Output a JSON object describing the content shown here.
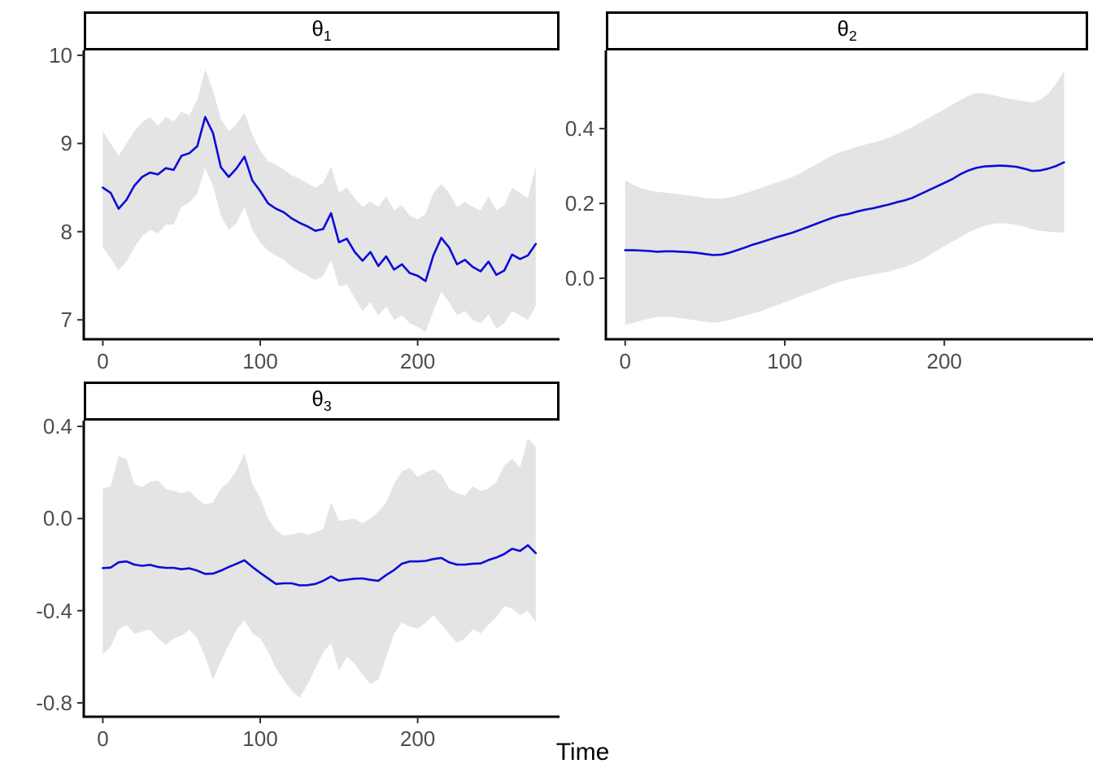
{
  "figure": {
    "x_label": "Time",
    "line_color": "#0b0bd8",
    "band_color": "#e4e4e4",
    "axis_color": "#000000",
    "tick_label_color": "#4d4d4d"
  },
  "chart_data": [
    {
      "type": "line",
      "id": "theta1",
      "title": {
        "base": "θ",
        "sub": "1"
      },
      "xlim": [
        -12.1,
        290.1
      ],
      "ylim": [
        6.78,
        10.055
      ],
      "x_ticks": [
        {
          "value": 0,
          "label": "0"
        },
        {
          "value": 100,
          "label": "100"
        },
        {
          "value": 200,
          "label": "200"
        }
      ],
      "y_ticks": [
        {
          "value": 10,
          "label": "10"
        },
        {
          "value": 9,
          "label": "9"
        },
        {
          "value": 8,
          "label": "8"
        },
        {
          "value": 7,
          "label": "7"
        }
      ],
      "x": [
        0,
        5,
        10,
        15,
        20,
        25,
        30,
        35,
        40,
        45,
        50,
        55,
        60,
        65,
        70,
        75,
        80,
        85,
        90,
        95,
        100,
        105,
        110,
        115,
        120,
        125,
        130,
        135,
        140,
        145,
        150,
        155,
        160,
        165,
        170,
        175,
        180,
        185,
        190,
        195,
        200,
        205,
        210,
        215,
        220,
        225,
        230,
        235,
        240,
        245,
        250,
        255,
        260,
        265,
        270,
        275
      ],
      "series": [
        {
          "name": "posterior_mean",
          "values": [
            8.5,
            8.44,
            8.26,
            8.36,
            8.52,
            8.62,
            8.67,
            8.65,
            8.72,
            8.7,
            8.86,
            8.89,
            8.97,
            9.3,
            9.12,
            8.73,
            8.62,
            8.72,
            8.85,
            8.58,
            8.46,
            8.32,
            8.26,
            8.22,
            8.15,
            8.1,
            8.06,
            8.01,
            8.03,
            8.21,
            7.88,
            7.92,
            7.77,
            7.67,
            7.77,
            7.61,
            7.72,
            7.57,
            7.63,
            7.53,
            7.5,
            7.44,
            7.73,
            7.93,
            7.82,
            7.63,
            7.68,
            7.6,
            7.55,
            7.66,
            7.51,
            7.56,
            7.74,
            7.69,
            7.73,
            7.86
          ]
        },
        {
          "name": "band_lower",
          "values": [
            7.82,
            7.7,
            7.56,
            7.66,
            7.82,
            7.95,
            8.02,
            7.98,
            8.08,
            8.08,
            8.28,
            8.33,
            8.43,
            8.72,
            8.52,
            8.18,
            8.02,
            8.1,
            8.28,
            8.02,
            7.88,
            7.78,
            7.73,
            7.68,
            7.6,
            7.55,
            7.5,
            7.45,
            7.5,
            7.68,
            7.38,
            7.4,
            7.25,
            7.1,
            7.2,
            7.05,
            7.15,
            7.0,
            7.05,
            6.96,
            6.92,
            6.86,
            7.1,
            7.32,
            7.2,
            7.05,
            7.1,
            7.0,
            6.96,
            7.06,
            6.9,
            6.96,
            7.1,
            7.05,
            7.0,
            7.16
          ]
        },
        {
          "name": "band_upper",
          "values": [
            9.14,
            9.0,
            8.86,
            9.0,
            9.14,
            9.24,
            9.3,
            9.2,
            9.3,
            9.25,
            9.36,
            9.32,
            9.5,
            9.84,
            9.6,
            9.28,
            9.14,
            9.22,
            9.35,
            9.1,
            8.92,
            8.8,
            8.76,
            8.7,
            8.64,
            8.6,
            8.55,
            8.5,
            8.55,
            8.74,
            8.44,
            8.5,
            8.38,
            8.28,
            8.34,
            8.28,
            8.4,
            8.24,
            8.3,
            8.18,
            8.14,
            8.2,
            8.44,
            8.54,
            8.44,
            8.28,
            8.34,
            8.28,
            8.24,
            8.4,
            8.24,
            8.3,
            8.5,
            8.44,
            8.38,
            8.74
          ]
        }
      ]
    },
    {
      "type": "line",
      "id": "theta2",
      "title": {
        "base": "θ",
        "sub": "2"
      },
      "xlim": [
        -12.1,
        290.1
      ],
      "ylim": [
        -0.163,
        0.609
      ],
      "x_ticks": [
        {
          "value": 0,
          "label": "0"
        },
        {
          "value": 100,
          "label": "100"
        },
        {
          "value": 200,
          "label": "200"
        }
      ],
      "y_ticks": [
        {
          "value": 0.4,
          "label": "0.4"
        },
        {
          "value": 0.2,
          "label": "0.2"
        },
        {
          "value": 0.0,
          "label": "0.0"
        }
      ],
      "x": [
        0,
        5,
        10,
        15,
        20,
        25,
        30,
        35,
        40,
        45,
        50,
        55,
        60,
        65,
        70,
        75,
        80,
        85,
        90,
        95,
        100,
        105,
        110,
        115,
        120,
        125,
        130,
        135,
        140,
        145,
        150,
        155,
        160,
        165,
        170,
        175,
        180,
        185,
        190,
        195,
        200,
        205,
        210,
        215,
        220,
        225,
        230,
        235,
        240,
        245,
        250,
        255,
        260,
        265,
        270,
        275
      ],
      "series": [
        {
          "name": "posterior_mean",
          "values": [
            0.075,
            0.075,
            0.074,
            0.073,
            0.071,
            0.072,
            0.072,
            0.071,
            0.07,
            0.068,
            0.065,
            0.062,
            0.063,
            0.068,
            0.075,
            0.082,
            0.09,
            0.096,
            0.103,
            0.11,
            0.116,
            0.122,
            0.13,
            0.138,
            0.146,
            0.154,
            0.162,
            0.168,
            0.172,
            0.178,
            0.183,
            0.187,
            0.192,
            0.197,
            0.203,
            0.208,
            0.215,
            0.225,
            0.235,
            0.245,
            0.255,
            0.265,
            0.278,
            0.288,
            0.295,
            0.299,
            0.3,
            0.301,
            0.3,
            0.298,
            0.293,
            0.287,
            0.288,
            0.293,
            0.3,
            0.31
          ]
        },
        {
          "name": "band_lower",
          "values": [
            -0.125,
            -0.12,
            -0.113,
            -0.108,
            -0.104,
            -0.103,
            -0.104,
            -0.107,
            -0.11,
            -0.113,
            -0.116,
            -0.119,
            -0.117,
            -0.112,
            -0.106,
            -0.1,
            -0.094,
            -0.088,
            -0.08,
            -0.072,
            -0.064,
            -0.056,
            -0.048,
            -0.04,
            -0.032,
            -0.024,
            -0.016,
            -0.009,
            -0.003,
            0.002,
            0.006,
            0.01,
            0.014,
            0.018,
            0.024,
            0.03,
            0.038,
            0.048,
            0.06,
            0.073,
            0.086,
            0.098,
            0.11,
            0.122,
            0.132,
            0.14,
            0.145,
            0.147,
            0.146,
            0.143,
            0.138,
            0.131,
            0.127,
            0.125,
            0.123,
            0.122
          ]
        },
        {
          "name": "band_upper",
          "values": [
            0.262,
            0.25,
            0.241,
            0.235,
            0.231,
            0.229,
            0.227,
            0.224,
            0.221,
            0.218,
            0.215,
            0.213,
            0.213,
            0.216,
            0.221,
            0.227,
            0.234,
            0.241,
            0.249,
            0.256,
            0.263,
            0.271,
            0.281,
            0.293,
            0.305,
            0.317,
            0.329,
            0.338,
            0.344,
            0.351,
            0.357,
            0.362,
            0.368,
            0.375,
            0.384,
            0.394,
            0.404,
            0.416,
            0.428,
            0.44,
            0.452,
            0.464,
            0.476,
            0.488,
            0.495,
            0.494,
            0.49,
            0.485,
            0.48,
            0.477,
            0.473,
            0.47,
            0.477,
            0.492,
            0.52,
            0.555
          ]
        }
      ]
    },
    {
      "type": "line",
      "id": "theta3",
      "title": {
        "base": "θ",
        "sub": "3"
      },
      "xlim": [
        -12.1,
        290.1
      ],
      "ylim": [
        -0.86,
        0.425
      ],
      "x_ticks": [
        {
          "value": 0,
          "label": "0"
        },
        {
          "value": 100,
          "label": "100"
        },
        {
          "value": 200,
          "label": "200"
        }
      ],
      "y_ticks": [
        {
          "value": 0.4,
          "label": "0.4"
        },
        {
          "value": 0.0,
          "label": "0.0"
        },
        {
          "value": -0.4,
          "label": "-0.4"
        },
        {
          "value": -0.8,
          "label": "-0.8"
        }
      ],
      "x": [
        0,
        5,
        10,
        15,
        20,
        25,
        30,
        35,
        40,
        45,
        50,
        55,
        60,
        65,
        70,
        75,
        80,
        85,
        90,
        95,
        100,
        105,
        110,
        115,
        120,
        125,
        130,
        135,
        140,
        145,
        150,
        155,
        160,
        165,
        170,
        175,
        180,
        185,
        190,
        195,
        200,
        205,
        210,
        215,
        220,
        225,
        230,
        235,
        240,
        245,
        250,
        255,
        260,
        265,
        270,
        275
      ],
      "series": [
        {
          "name": "posterior_mean",
          "values": [
            -0.215,
            -0.213,
            -0.19,
            -0.186,
            -0.2,
            -0.205,
            -0.201,
            -0.21,
            -0.214,
            -0.214,
            -0.22,
            -0.216,
            -0.226,
            -0.24,
            -0.239,
            -0.226,
            -0.21,
            -0.196,
            -0.181,
            -0.21,
            -0.236,
            -0.26,
            -0.284,
            -0.281,
            -0.281,
            -0.29,
            -0.289,
            -0.284,
            -0.27,
            -0.251,
            -0.27,
            -0.265,
            -0.261,
            -0.26,
            -0.266,
            -0.27,
            -0.245,
            -0.224,
            -0.196,
            -0.186,
            -0.186,
            -0.184,
            -0.176,
            -0.171,
            -0.19,
            -0.2,
            -0.2,
            -0.196,
            -0.195,
            -0.18,
            -0.169,
            -0.154,
            -0.131,
            -0.141,
            -0.116,
            -0.15
          ]
        },
        {
          "name": "band_lower",
          "values": [
            -0.59,
            -0.556,
            -0.48,
            -0.462,
            -0.5,
            -0.49,
            -0.482,
            -0.52,
            -0.548,
            -0.52,
            -0.508,
            -0.482,
            -0.52,
            -0.6,
            -0.7,
            -0.618,
            -0.548,
            -0.482,
            -0.44,
            -0.498,
            -0.52,
            -0.578,
            -0.65,
            -0.7,
            -0.748,
            -0.778,
            -0.72,
            -0.65,
            -0.58,
            -0.54,
            -0.66,
            -0.6,
            -0.63,
            -0.678,
            -0.718,
            -0.7,
            -0.6,
            -0.5,
            -0.452,
            -0.468,
            -0.478,
            -0.452,
            -0.42,
            -0.458,
            -0.5,
            -0.54,
            -0.52,
            -0.482,
            -0.498,
            -0.46,
            -0.428,
            -0.38,
            -0.39,
            -0.42,
            -0.4,
            -0.448
          ]
        },
        {
          "name": "band_upper",
          "values": [
            0.13,
            0.14,
            0.27,
            0.258,
            0.15,
            0.136,
            0.16,
            0.164,
            0.13,
            0.12,
            0.11,
            0.12,
            0.086,
            0.06,
            0.07,
            0.13,
            0.16,
            0.21,
            0.284,
            0.15,
            0.09,
            0.0,
            -0.05,
            -0.074,
            -0.07,
            -0.06,
            -0.07,
            -0.06,
            -0.046,
            0.07,
            -0.01,
            -0.006,
            0.0,
            -0.02,
            0.0,
            0.03,
            0.07,
            0.15,
            0.204,
            0.22,
            0.18,
            0.2,
            0.214,
            0.19,
            0.13,
            0.11,
            0.1,
            0.14,
            0.12,
            0.13,
            0.16,
            0.23,
            0.26,
            0.22,
            0.348,
            0.31
          ]
        }
      ]
    }
  ]
}
